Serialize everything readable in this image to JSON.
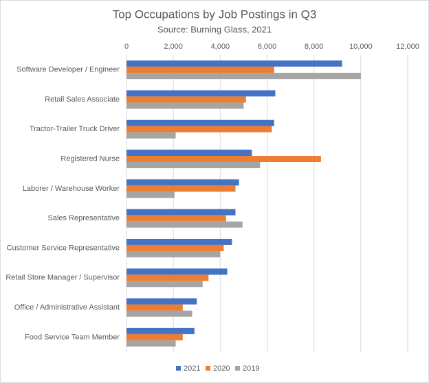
{
  "chart_data": {
    "type": "hbar",
    "title": "Top Occupations by Job Postings in Q3",
    "subtitle": "Source: Burning Glass, 2021",
    "categories": [
      "Software Developer / Engineer",
      "Retail Sales Associate",
      "Tractor-Trailer Truck Driver",
      "Registered Nurse",
      "Laborer / Warehouse Worker",
      "Sales Representative",
      "Customer Service Representative",
      "Retail Store Manager / Supervisor",
      "Office / Administrative Assistant",
      "Food Service Team Member"
    ],
    "series": [
      {
        "name": "2021",
        "color": "#4472c4",
        "values": [
          9200,
          6350,
          6300,
          5350,
          4800,
          4650,
          4500,
          4300,
          3000,
          2900
        ]
      },
      {
        "name": "2020",
        "color": "#ed7d31",
        "values": [
          6300,
          5100,
          6200,
          8300,
          4650,
          4250,
          4150,
          3500,
          2400,
          2400
        ]
      },
      {
        "name": "2019",
        "color": "#a5a5a5",
        "values": [
          10000,
          5000,
          2100,
          5700,
          2050,
          4950,
          4000,
          3250,
          2800,
          2100
        ]
      }
    ],
    "xlim": [
      0,
      12000
    ],
    "xticks": [
      0,
      {
        "value": 2000,
        "label": "2,000"
      },
      {
        "value": 4000,
        "label": "4,000"
      },
      {
        "value": 6000,
        "label": "6,000"
      },
      {
        "value": 8000,
        "label": "8,000"
      },
      {
        "value": 10000,
        "label": "10,000"
      },
      {
        "value": 12000,
        "label": "12,000"
      }
    ],
    "grid": true,
    "legend": "bottom"
  }
}
